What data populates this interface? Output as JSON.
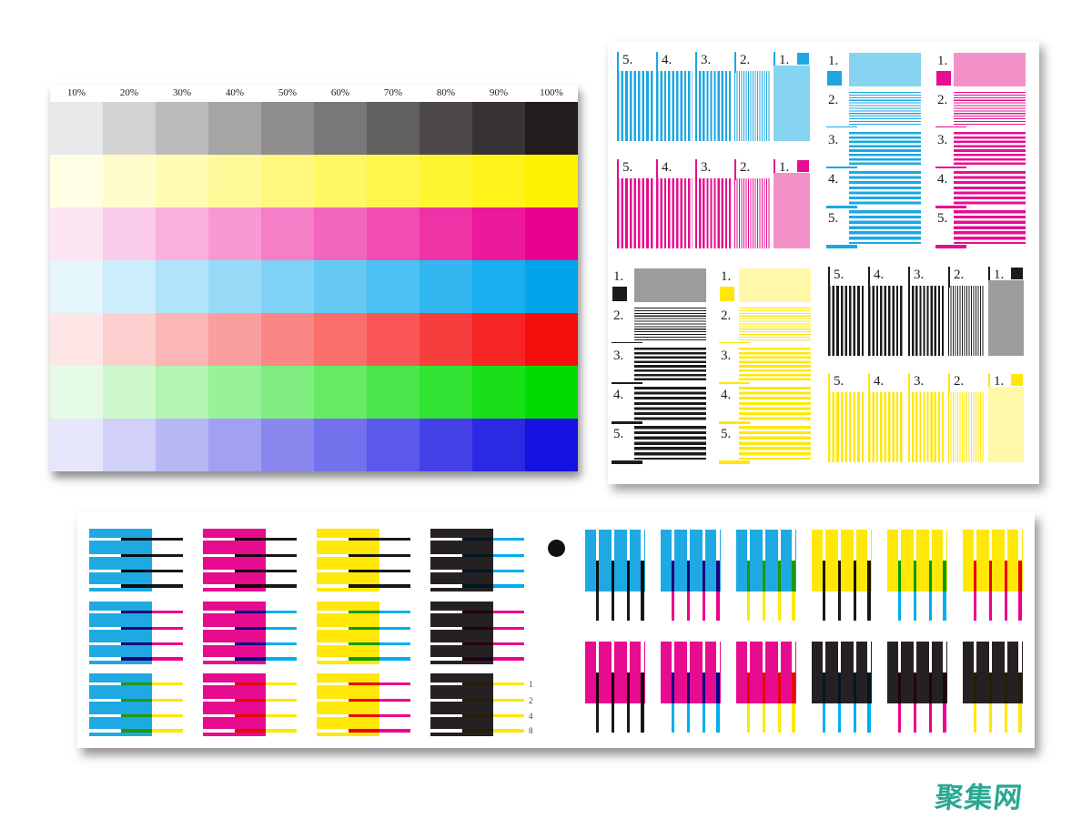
{
  "watermark": {
    "text": "聚集网",
    "color": "#2aa793"
  },
  "tint_chart": {
    "percent_labels": [
      "10%",
      "20%",
      "30%",
      "40%",
      "50%",
      "60%",
      "70%",
      "80%",
      "90%",
      "100%"
    ],
    "levels": [
      0.1,
      0.2,
      0.3,
      0.4,
      0.5,
      0.6,
      0.7,
      0.8,
      0.9,
      1.0
    ],
    "rows": [
      {
        "name": "black",
        "base": "#211c1e"
      },
      {
        "name": "yellow",
        "base": "#fff200"
      },
      {
        "name": "magenta",
        "base": "#ea0090"
      },
      {
        "name": "cyan",
        "base": "#00a5ec"
      },
      {
        "name": "red",
        "base": "#f60d0d"
      },
      {
        "name": "green",
        "base": "#00dc00"
      },
      {
        "name": "blue",
        "base": "#1512e0"
      }
    ]
  },
  "inks": {
    "cyan": {
      "full": "#1ca7e2",
      "light": "#86d4f2"
    },
    "magenta": {
      "full": "#e60d90",
      "light": "#f291c8"
    },
    "yellow": {
      "full": "#ffe70a",
      "light": "#fff8a8"
    },
    "black": {
      "full": "#1c1a1b",
      "light": "#9c9c9c"
    }
  },
  "nozzle_panel": {
    "countdown_labels": [
      "5.",
      "4.",
      "3.",
      "2.",
      "1."
    ],
    "countup_labels": [
      "1.",
      "2.",
      "3.",
      "4.",
      "5."
    ],
    "vertical_groups": [
      {
        "ink": "cyan"
      },
      {
        "ink": "magenta"
      },
      {
        "ink": "black"
      },
      {
        "ink": "yellow"
      }
    ],
    "horizontal_columns": [
      {
        "ink": "black"
      },
      {
        "ink": "yellow"
      },
      {
        "ink": "cyan"
      },
      {
        "ink": "magenta"
      }
    ]
  },
  "alignment_strip": {
    "line_palette": {
      "black": "#1a1718",
      "cyan": "#00aeef",
      "magenta": "#ec008c",
      "yellow": "#ffe800"
    },
    "block_palette": {
      "cyan": "#1fa9e2",
      "magenta": "#e60b8f",
      "yellow": "#ffe70a",
      "black": "#252122"
    },
    "left_grid": {
      "block_columns": [
        "cyan",
        "magenta",
        "yellow",
        "black"
      ],
      "row_line_colors": [
        [
          "black",
          "black",
          "black",
          "cyan"
        ],
        [
          "magenta",
          "cyan",
          "cyan",
          "magenta"
        ],
        [
          "yellow",
          "yellow",
          "magenta",
          "yellow"
        ]
      ],
      "scale_numbers": [
        "1",
        "2",
        "4",
        "8"
      ]
    },
    "right_grid": {
      "rows": [
        [
          {
            "block": "cyan",
            "line": "black"
          },
          {
            "block": "cyan",
            "line": "magenta"
          },
          {
            "block": "cyan",
            "line": "yellow"
          },
          {
            "block": "yellow",
            "line": "black"
          },
          {
            "block": "yellow",
            "line": "cyan"
          },
          {
            "block": "yellow",
            "line": "magenta"
          }
        ],
        [
          {
            "block": "magenta",
            "line": "black"
          },
          {
            "block": "magenta",
            "line": "cyan"
          },
          {
            "block": "magenta",
            "line": "yellow"
          },
          {
            "block": "black",
            "line": "cyan"
          },
          {
            "block": "black",
            "line": "magenta"
          },
          {
            "block": "black",
            "line": "yellow"
          }
        ]
      ]
    }
  }
}
